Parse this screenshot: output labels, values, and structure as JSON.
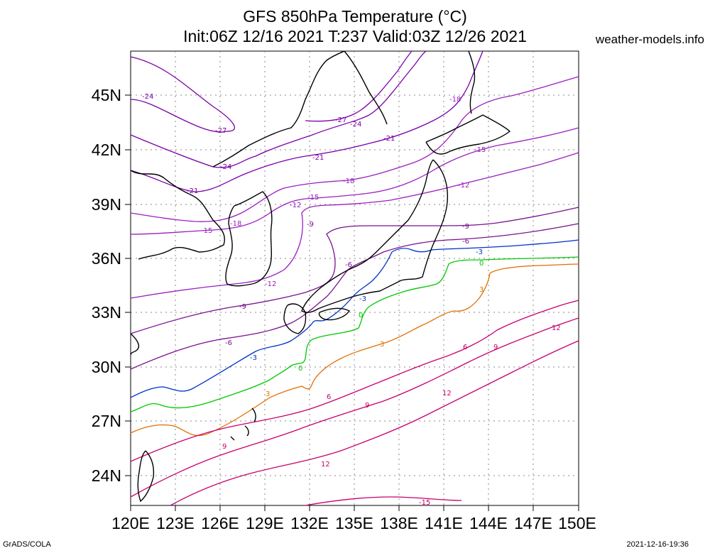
{
  "title_line1": "GFS 850hPa Temperature (°C)",
  "title_line2": "Init:06Z 12/16 2021 T:237 Valid:03Z 12/26 2021",
  "source": "weather-models.info",
  "footer_left": "GrADS/COLA",
  "footer_right": "2021-12-16-19:36",
  "x_labels": [
    "120E",
    "123E",
    "126E",
    "129E",
    "132E",
    "135E",
    "138E",
    "141E",
    "144E",
    "147E",
    "150E"
  ],
  "y_labels": [
    "45N",
    "42N",
    "39N",
    "36N",
    "33N",
    "30N",
    "27N",
    "24N"
  ],
  "contour_colors": {
    "-27": "#7b00a8",
    "-24": "#7b00a8",
    "-21": "#7b00a8",
    "-18": "#9a1fc0",
    "-15": "#9a1fc0",
    "-12": "#9a1fc0",
    "-9": "#7a1090",
    "-6": "#7a1090",
    "-3": "#0032c8",
    "0": "#00c800",
    "3": "#e07000",
    "6": "#c8006e",
    "9": "#c8006e",
    "12": "#c8006e",
    "15": "#c8006e"
  },
  "contour_labels": [
    "-24",
    "-27",
    "-27",
    "-24",
    "-21",
    "-21",
    "-18",
    "-24",
    "-21",
    "-18",
    "-15",
    "-12",
    "-15",
    "-18",
    "-15",
    "-12",
    "-9",
    "-9",
    "-6",
    "-6",
    "-3",
    "0",
    "3",
    "-12",
    "-9",
    "-6",
    "-3",
    "-3",
    "0",
    "0",
    "3",
    "3",
    "6",
    "9",
    "12",
    "9",
    "12",
    "6",
    "9",
    "12",
    "-15"
  ]
}
